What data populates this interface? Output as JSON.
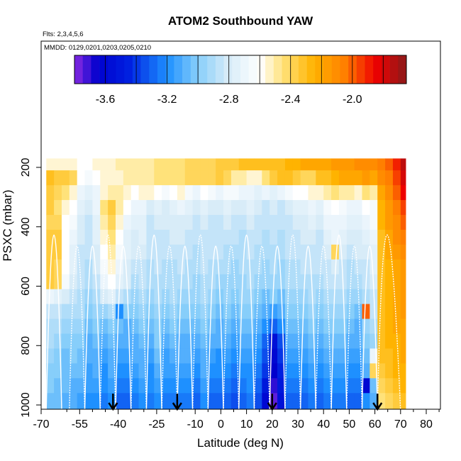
{
  "chart_data": {
    "type": "heatmap",
    "title": "ATOM2 Southbound YAW",
    "flights_label": "Flts: 2,3,4,5,6",
    "dates_label": "MMDD: 0129,0201,0203,0205,0210",
    "xlabel": "Latitude (deg N)",
    "ylabel": "PSXC (mbar)",
    "xlim": [
      -70,
      85
    ],
    "ylim": [
      1020,
      0
    ],
    "x_ticks": [
      -70,
      -55,
      -40,
      -25,
      -10,
      0,
      10,
      20,
      30,
      40,
      50,
      60,
      70,
      80
    ],
    "x_minor_ticks": [
      -60,
      -50,
      -45,
      -35,
      -30,
      -20,
      -15,
      -5,
      5,
      15,
      25,
      35,
      45,
      55,
      65,
      75,
      85
    ],
    "y_ticks": [
      200,
      400,
      600,
      800,
      1000
    ],
    "colorbar": {
      "range": [
        -3.8,
        -1.65
      ],
      "ticks": [
        -3.6,
        -3.2,
        -2.8,
        -2.4,
        -2.0
      ],
      "tick_labels": [
        "-3.6",
        "-3.2",
        "-2.8",
        "-2.4",
        "-2.0"
      ],
      "color_stops": [
        {
          "v": -3.8,
          "c": "#8b2be2"
        },
        {
          "v": -3.65,
          "c": "#0000cd"
        },
        {
          "v": -3.45,
          "c": "#0020e0"
        },
        {
          "v": -3.2,
          "c": "#1e90ff"
        },
        {
          "v": -3.0,
          "c": "#87cefa"
        },
        {
          "v": -2.8,
          "c": "#d8ecf8"
        },
        {
          "v": -2.6,
          "c": "#ffffff"
        },
        {
          "v": -2.45,
          "c": "#ffe27a"
        },
        {
          "v": -2.25,
          "c": "#ffb300"
        },
        {
          "v": -2.05,
          "c": "#ff7f00"
        },
        {
          "v": -1.85,
          "c": "#ee0000"
        },
        {
          "v": -1.65,
          "c": "#8b1a1a"
        }
      ]
    },
    "data_extent": {
      "lat": [
        -68,
        72
      ],
      "pres": [
        170,
        1020
      ]
    },
    "lat_bins": [
      -68,
      -65,
      -62,
      -59,
      -56,
      -53,
      -50,
      -47,
      -44,
      -41,
      -38,
      -35,
      -32,
      -29,
      -26,
      -23,
      -20,
      -17,
      -14,
      -11,
      -8,
      -5,
      -2,
      1,
      4,
      7,
      10,
      13,
      16,
      19,
      22,
      25,
      28,
      31,
      34,
      37,
      40,
      43,
      46,
      49,
      52,
      55,
      58,
      61,
      64,
      67,
      70,
      72
    ],
    "pres_bins": [
      170,
      210,
      260,
      310,
      360,
      410,
      460,
      510,
      560,
      610,
      660,
      710,
      760,
      810,
      860,
      910,
      960,
      1020
    ],
    "values": [
      [
        -2.55,
        -2.55,
        -2.55,
        -2.55,
        -2.6,
        -2.6,
        -2.55,
        -2.55,
        -2.55,
        -2.5,
        -2.5,
        -2.5,
        -2.5,
        -2.5,
        -2.45,
        -2.45,
        -2.45,
        -2.45,
        -2.4,
        -2.4,
        -2.4,
        -2.4,
        -2.35,
        -2.35,
        -2.35,
        -2.3,
        -2.3,
        -2.3,
        -2.3,
        -2.3,
        -2.3,
        -2.25,
        -2.25,
        -2.2,
        -2.2,
        -2.2,
        -2.2,
        -2.15,
        -2.15,
        -2.15,
        -2.1,
        -2.1,
        -2.1,
        -2.05,
        -2.0,
        -1.9,
        -1.75
      ],
      [
        -2.3,
        -2.35,
        -2.35,
        -2.4,
        -2.6,
        -2.65,
        -2.6,
        -2.55,
        -2.55,
        -2.55,
        -2.5,
        -2.5,
        -2.5,
        -2.5,
        -2.45,
        -2.45,
        -2.45,
        -2.45,
        -2.4,
        -2.4,
        -2.4,
        -2.4,
        -2.35,
        -2.4,
        -2.5,
        -2.5,
        -2.55,
        -2.55,
        -2.45,
        -2.35,
        -2.3,
        -2.3,
        -2.35,
        -2.4,
        -2.4,
        -2.3,
        -2.3,
        -2.25,
        -2.2,
        -2.2,
        -2.2,
        -2.15,
        -2.2,
        -2.1,
        -2.05,
        -1.95,
        -1.8
      ],
      [
        -2.35,
        -2.4,
        -2.45,
        -2.55,
        -2.7,
        -2.75,
        -2.7,
        -2.55,
        -2.5,
        -2.5,
        -2.55,
        -2.6,
        -2.55,
        -2.55,
        -2.6,
        -2.65,
        -2.6,
        -2.55,
        -2.65,
        -2.7,
        -2.6,
        -2.65,
        -2.7,
        -2.65,
        -2.65,
        -2.7,
        -2.7,
        -2.75,
        -2.7,
        -2.75,
        -2.7,
        -2.65,
        -2.6,
        -2.6,
        -2.55,
        -2.55,
        -2.5,
        -2.45,
        -2.5,
        -2.5,
        -2.55,
        -2.45,
        -2.5,
        -2.2,
        -2.1,
        -2.0,
        -1.85
      ],
      [
        -2.35,
        -2.45,
        -2.55,
        -2.6,
        -2.75,
        -2.8,
        -2.7,
        -2.45,
        -2.35,
        -2.5,
        -2.6,
        -2.7,
        -2.7,
        -2.8,
        -2.75,
        -2.8,
        -2.75,
        -2.7,
        -2.75,
        -2.8,
        -2.75,
        -2.8,
        -2.8,
        -2.75,
        -2.8,
        -2.8,
        -2.75,
        -2.8,
        -2.85,
        -2.8,
        -2.85,
        -2.8,
        -2.75,
        -2.75,
        -2.7,
        -2.75,
        -2.65,
        -2.6,
        -2.65,
        -2.7,
        -2.7,
        -2.6,
        -2.65,
        -2.25,
        -2.15,
        -2.05,
        -1.95
      ],
      [
        -2.4,
        -2.4,
        -2.6,
        -2.65,
        -2.8,
        -2.85,
        -2.75,
        -2.5,
        -2.4,
        -2.55,
        -2.7,
        -2.75,
        -2.75,
        -2.85,
        -2.8,
        -2.8,
        -2.8,
        -2.8,
        -2.8,
        -2.85,
        -2.8,
        -2.85,
        -2.85,
        -2.8,
        -2.85,
        -2.85,
        -2.8,
        -2.85,
        -2.85,
        -2.85,
        -2.85,
        -2.85,
        -2.8,
        -2.8,
        -2.75,
        -2.8,
        -2.7,
        -2.7,
        -2.7,
        -2.75,
        -2.75,
        -2.7,
        -2.65,
        -2.25,
        -2.15,
        -2.1,
        -2.0
      ],
      [
        -2.35,
        -2.35,
        -2.6,
        -2.7,
        -2.8,
        -2.85,
        -2.75,
        -2.55,
        -2.45,
        -2.6,
        -2.75,
        -2.8,
        -2.75,
        -2.85,
        -2.85,
        -2.85,
        -2.8,
        -2.8,
        -2.85,
        -2.85,
        -2.85,
        -2.85,
        -2.85,
        -2.85,
        -2.85,
        -2.9,
        -2.85,
        -2.85,
        -2.9,
        -2.85,
        -2.9,
        -2.85,
        -2.85,
        -2.8,
        -2.8,
        -2.85,
        -2.75,
        -2.7,
        -2.75,
        -2.8,
        -2.8,
        -2.75,
        -2.7,
        -2.3,
        -2.2,
        -2.1,
        -2.05
      ],
      [
        -2.35,
        -2.35,
        -2.6,
        -2.75,
        -2.85,
        -2.85,
        -2.8,
        -2.6,
        -2.5,
        -2.65,
        -2.75,
        -2.8,
        -2.8,
        -2.85,
        -2.85,
        -2.85,
        -2.85,
        -2.85,
        -2.85,
        -2.9,
        -2.85,
        -2.85,
        -2.85,
        -2.9,
        -2.9,
        -2.9,
        -2.85,
        -2.9,
        -2.9,
        -2.9,
        -2.9,
        -2.85,
        -2.85,
        -2.85,
        -2.85,
        -2.85,
        -2.8,
        -2.4,
        -2.8,
        -2.85,
        -2.8,
        -2.8,
        -2.75,
        -2.3,
        -2.2,
        -2.15,
        -2.1
      ],
      [
        -2.35,
        -2.4,
        -2.6,
        -2.75,
        -2.85,
        -2.9,
        -2.8,
        -2.65,
        -2.55,
        -2.7,
        -2.8,
        -2.85,
        -2.85,
        -2.9,
        -2.85,
        -2.9,
        -2.9,
        -2.85,
        -2.9,
        -2.9,
        -2.85,
        -2.9,
        -2.9,
        -2.9,
        -2.95,
        -2.9,
        -2.9,
        -2.9,
        -2.95,
        -2.9,
        -2.95,
        -2.9,
        -2.9,
        -2.85,
        -2.85,
        -2.85,
        -2.85,
        -2.8,
        -2.85,
        -2.9,
        -2.85,
        -2.85,
        -2.75,
        -2.3,
        -2.25,
        -2.2,
        -2.15
      ],
      [
        -2.35,
        -2.4,
        -2.65,
        -2.8,
        -2.85,
        -2.9,
        -2.85,
        -2.7,
        -2.6,
        -2.75,
        -2.8,
        -2.9,
        -2.85,
        -2.9,
        -2.9,
        -2.9,
        -2.9,
        -2.9,
        -2.9,
        -2.95,
        -2.9,
        -2.9,
        -2.95,
        -2.95,
        -2.95,
        -2.95,
        -2.9,
        -2.95,
        -2.95,
        -2.95,
        -2.95,
        -2.9,
        -2.9,
        -2.9,
        -2.9,
        -2.9,
        -2.85,
        -2.85,
        -2.85,
        -2.9,
        -2.9,
        -2.85,
        -2.8,
        -2.3,
        -2.25,
        -2.2,
        -2.15
      ],
      [
        -2.7,
        -2.75,
        -2.8,
        -2.85,
        -2.9,
        -2.95,
        -2.9,
        -2.8,
        -2.75,
        -2.85,
        -2.9,
        -2.95,
        -2.9,
        -2.95,
        -2.9,
        -2.95,
        -2.9,
        -2.95,
        -2.95,
        -2.95,
        -2.9,
        -2.95,
        -3.0,
        -2.95,
        -3.0,
        -2.95,
        -2.95,
        -3.0,
        -3.05,
        -3.0,
        -3.05,
        -2.95,
        -2.95,
        -2.95,
        -2.9,
        -2.95,
        -2.9,
        -2.9,
        -2.9,
        -2.95,
        -2.95,
        -2.9,
        -2.85,
        -2.3,
        -2.25,
        -2.2,
        -2.15
      ],
      [
        -2.85,
        -2.85,
        -2.9,
        -2.9,
        -2.9,
        -3.0,
        -2.95,
        -2.95,
        -2.9,
        -3.2,
        -3.0,
        -3.0,
        -2.95,
        -3.0,
        -2.95,
        -3.0,
        -2.95,
        -3.0,
        -3.0,
        -3.0,
        -2.95,
        -3.0,
        -3.05,
        -3.0,
        -3.05,
        -3.0,
        -3.0,
        -3.05,
        -3.1,
        -3.15,
        -3.1,
        -3.0,
        -3.0,
        -3.0,
        -2.95,
        -3.0,
        -2.95,
        -2.95,
        -2.95,
        -3.0,
        -3.05,
        -2.0,
        -2.85,
        -2.3,
        -2.25,
        -2.2,
        -2.15
      ],
      [
        -2.9,
        -2.9,
        -2.95,
        -2.95,
        -2.95,
        -3.05,
        -3.0,
        -3.05,
        -3.0,
        -3.05,
        -3.1,
        -3.05,
        -3.0,
        -3.05,
        -3.0,
        -3.05,
        -3.0,
        -3.05,
        -3.05,
        -3.05,
        -3.0,
        -3.05,
        -3.1,
        -3.05,
        -3.1,
        -3.05,
        -3.05,
        -3.1,
        -3.2,
        -3.3,
        -3.2,
        -3.05,
        -3.05,
        -3.05,
        -3.0,
        -3.05,
        -3.0,
        -3.0,
        -3.0,
        -3.05,
        -3.1,
        -2.95,
        -2.9,
        -2.3,
        -2.25,
        -2.2,
        -2.2
      ],
      [
        -2.9,
        -2.95,
        -3.0,
        -3.0,
        -3.0,
        -3.1,
        -3.05,
        -3.1,
        -3.05,
        -3.1,
        -3.1,
        -3.1,
        -3.05,
        -3.1,
        -3.0,
        -3.1,
        -3.05,
        -3.1,
        -3.1,
        -3.1,
        -3.05,
        -3.1,
        -3.1,
        -3.1,
        -3.15,
        -3.1,
        -3.1,
        -3.15,
        -3.3,
        -3.55,
        -3.35,
        -3.1,
        -3.1,
        -3.1,
        -3.05,
        -3.1,
        -3.05,
        -3.05,
        -3.05,
        -3.1,
        -3.1,
        -3.0,
        -2.95,
        -2.3,
        -2.25,
        -2.25,
        -2.2
      ],
      [
        -2.95,
        -3.0,
        -3.05,
        -3.0,
        -3.05,
        -3.1,
        -3.1,
        -3.15,
        -3.1,
        -3.15,
        -3.15,
        -3.1,
        -3.1,
        -3.15,
        -3.05,
        -3.15,
        -3.1,
        -3.1,
        -3.1,
        -3.15,
        -3.1,
        -3.15,
        -3.2,
        -3.15,
        -3.2,
        -3.15,
        -3.15,
        -3.2,
        -3.35,
        -3.6,
        -3.4,
        -3.15,
        -3.15,
        -3.15,
        -3.1,
        -3.15,
        -3.1,
        -3.1,
        -3.1,
        -3.15,
        -3.15,
        -3.05,
        -2.7,
        -2.3,
        -2.3,
        -2.25,
        -2.2
      ],
      [
        -3.0,
        -3.0,
        -3.05,
        -3.05,
        -3.05,
        -3.15,
        -3.1,
        -3.2,
        -3.1,
        -3.2,
        -3.2,
        -3.15,
        -3.1,
        -3.2,
        -3.1,
        -3.15,
        -3.15,
        -3.15,
        -3.15,
        -3.2,
        -3.1,
        -3.2,
        -3.2,
        -3.2,
        -3.25,
        -3.2,
        -3.2,
        -3.25,
        -3.4,
        -3.65,
        -3.45,
        -3.2,
        -3.2,
        -3.2,
        -3.15,
        -3.2,
        -3.15,
        -3.15,
        -3.15,
        -3.2,
        -3.2,
        -3.1,
        -2.4,
        -2.35,
        -2.3,
        -2.25,
        -2.25
      ],
      [
        -3.0,
        -3.05,
        -3.05,
        -3.1,
        -3.1,
        -3.15,
        -3.15,
        -3.2,
        -3.15,
        -3.25,
        -3.25,
        -3.2,
        -3.15,
        -3.2,
        -3.15,
        -3.2,
        -3.2,
        -3.2,
        -3.2,
        -3.25,
        -3.15,
        -3.25,
        -3.25,
        -3.25,
        -3.3,
        -3.25,
        -3.2,
        -3.3,
        -3.5,
        -3.7,
        -3.5,
        -3.25,
        -3.25,
        -3.25,
        -3.2,
        -3.25,
        -3.2,
        -3.2,
        -3.2,
        -3.25,
        -3.25,
        -3.6,
        -3.05,
        -2.4,
        -2.35,
        -2.3,
        -2.25
      ],
      [
        -3.05,
        -3.05,
        -3.1,
        -3.1,
        -3.15,
        -3.2,
        -3.2,
        -3.25,
        -3.2,
        -3.3,
        -3.3,
        -3.25,
        -3.2,
        -3.25,
        -3.2,
        -3.25,
        -3.25,
        -3.25,
        -3.25,
        -3.3,
        -3.2,
        -3.3,
        -3.3,
        -3.3,
        -3.35,
        -3.3,
        -3.25,
        -3.35,
        -3.6,
        -3.75,
        -3.55,
        -3.3,
        -3.3,
        -3.3,
        -3.25,
        -3.3,
        -3.25,
        -3.25,
        -3.25,
        -3.3,
        -3.3,
        -3.2,
        -3.1,
        -2.45,
        -2.4,
        -2.35,
        -2.3
      ]
    ],
    "arrows": [
      -42,
      -17,
      20,
      61
    ],
    "profile_segments": [
      [
        -68,
        -66,
        -64,
        -62
      ],
      [
        -59,
        -57,
        -55,
        -53
      ],
      [
        -53,
        -51,
        -49,
        -47
      ],
      [
        -47,
        -45,
        -43,
        -41
      ],
      [
        -41,
        -39,
        -37,
        -35
      ],
      [
        -35,
        -33,
        -31,
        -29
      ],
      [
        -29,
        -27,
        -25,
        -23
      ],
      [
        -23,
        -21,
        -19,
        -17
      ],
      [
        -17,
        -15,
        -13,
        -11
      ],
      [
        -11,
        -9,
        -7,
        -5
      ],
      [
        -5,
        -3,
        -1,
        1
      ],
      [
        1,
        3,
        5,
        7
      ],
      [
        7,
        9,
        11,
        13
      ],
      [
        13,
        15,
        17,
        19
      ],
      [
        19,
        21,
        23,
        25
      ],
      [
        25,
        27,
        29,
        31
      ],
      [
        31,
        33,
        35,
        37
      ],
      [
        37,
        39,
        41,
        43
      ],
      [
        43,
        45,
        47,
        49
      ],
      [
        49,
        51,
        53,
        55
      ],
      [
        55,
        57,
        59,
        61
      ],
      [
        61,
        63,
        66,
        70
      ]
    ]
  }
}
